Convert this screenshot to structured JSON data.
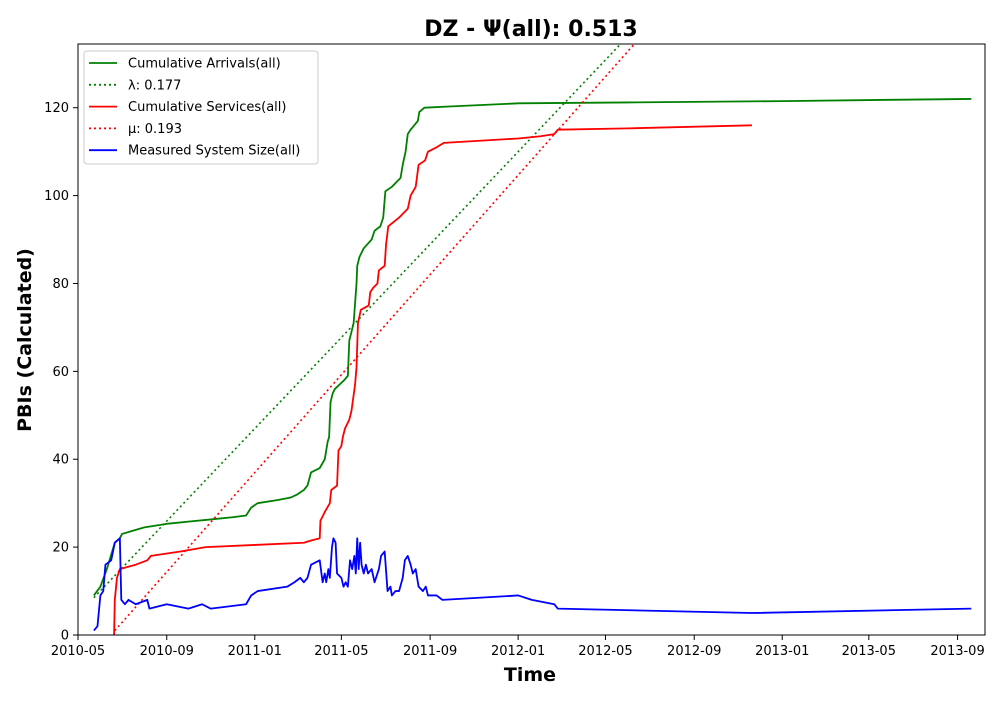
{
  "chart_data": {
    "type": "line",
    "title": "DZ -  Ψ(all): 0.513",
    "xlabel": "Time",
    "ylabel": "PBIs (Calculated)",
    "xlim": [
      "2010-05-01",
      "2013-10-09"
    ],
    "ylim": [
      0,
      134.5
    ],
    "x_ticks": [
      "2010-05",
      "2010-09",
      "2011-01",
      "2011-05",
      "2011-09",
      "2012-01",
      "2012-05",
      "2012-09",
      "2013-01",
      "2013-05",
      "2013-09"
    ],
    "y_ticks": [
      0,
      20,
      40,
      60,
      80,
      100,
      120
    ],
    "grid": false,
    "legend_position": "top-left",
    "series": [
      {
        "name": "Cumulative Arrivals(all)",
        "color": "#008000",
        "style": "solid",
        "points": [
          [
            "2010-05-23",
            9
          ],
          [
            "2010-06-01",
            11
          ],
          [
            "2010-06-10",
            15
          ],
          [
            "2010-06-21",
            21
          ],
          [
            "2010-06-28",
            22
          ],
          [
            "2010-07-01",
            23
          ],
          [
            "2010-08-01",
            24.5
          ],
          [
            "2010-09-01",
            25.3
          ],
          [
            "2010-10-01",
            25.8
          ],
          [
            "2010-11-01",
            26.3
          ],
          [
            "2010-12-01",
            26.8
          ],
          [
            "2010-12-20",
            27.2
          ],
          [
            "2010-12-27",
            29
          ],
          [
            "2011-01-05",
            30
          ],
          [
            "2011-02-01",
            30.7
          ],
          [
            "2011-02-20",
            31.3
          ],
          [
            "2011-03-01",
            32
          ],
          [
            "2011-03-10",
            33
          ],
          [
            "2011-03-15",
            34
          ],
          [
            "2011-03-20",
            37
          ],
          [
            "2011-04-01",
            38
          ],
          [
            "2011-04-08",
            40
          ],
          [
            "2011-04-12",
            44
          ],
          [
            "2011-04-14",
            45
          ],
          [
            "2011-04-16",
            53
          ],
          [
            "2011-04-19",
            55
          ],
          [
            "2011-04-22",
            56
          ],
          [
            "2011-05-05",
            58
          ],
          [
            "2011-05-10",
            59
          ],
          [
            "2011-05-12",
            67
          ],
          [
            "2011-05-15",
            69
          ],
          [
            "2011-05-18",
            71
          ],
          [
            "2011-05-22",
            80
          ],
          [
            "2011-05-23",
            84
          ],
          [
            "2011-05-26",
            86
          ],
          [
            "2011-06-01",
            88
          ],
          [
            "2011-06-12",
            90
          ],
          [
            "2011-06-16",
            92
          ],
          [
            "2011-06-24",
            93
          ],
          [
            "2011-06-28",
            95
          ],
          [
            "2011-07-01",
            101
          ],
          [
            "2011-07-10",
            102
          ],
          [
            "2011-07-22",
            104
          ],
          [
            "2011-07-25",
            107
          ],
          [
            "2011-07-29",
            110
          ],
          [
            "2011-08-01",
            114
          ],
          [
            "2011-08-05",
            115
          ],
          [
            "2011-08-10",
            116
          ],
          [
            "2011-08-15",
            117
          ],
          [
            "2011-08-17",
            119
          ],
          [
            "2011-08-24",
            120
          ],
          [
            "2011-10-01",
            120.3
          ],
          [
            "2012-01-01",
            121
          ],
          [
            "2012-06-01",
            121.2
          ],
          [
            "2013-01-01",
            121.5
          ],
          [
            "2013-06-01",
            121.8
          ],
          [
            "2013-09-20",
            122
          ]
        ]
      },
      {
        "name": "λ: 0.177",
        "color": "#008000",
        "style": "dotted",
        "points": [
          [
            "2010-05-23",
            8.5
          ],
          [
            "2012-05-22",
            134.5
          ]
        ]
      },
      {
        "name": "Cumulative Services(all)",
        "color": "#ff0000",
        "style": "solid",
        "points": [
          [
            "2010-06-20",
            0
          ],
          [
            "2010-06-21",
            8
          ],
          [
            "2010-06-24",
            13
          ],
          [
            "2010-06-28",
            15
          ],
          [
            "2010-07-20",
            16
          ],
          [
            "2010-08-05",
            17
          ],
          [
            "2010-08-10",
            18
          ],
          [
            "2010-09-20",
            19
          ],
          [
            "2010-10-25",
            20
          ],
          [
            "2011-01-01",
            20.5
          ],
          [
            "2011-03-10",
            21
          ],
          [
            "2011-03-20",
            21.5
          ],
          [
            "2011-04-01",
            22
          ],
          [
            "2011-04-02",
            26
          ],
          [
            "2011-04-08",
            28
          ],
          [
            "2011-04-15",
            30
          ],
          [
            "2011-04-17",
            33
          ],
          [
            "2011-04-25",
            34
          ],
          [
            "2011-04-27",
            42
          ],
          [
            "2011-05-01",
            43
          ],
          [
            "2011-05-03",
            45
          ],
          [
            "2011-05-06",
            47
          ],
          [
            "2011-05-12",
            49
          ],
          [
            "2011-05-15",
            51
          ],
          [
            "2011-05-20",
            57
          ],
          [
            "2011-05-22",
            61
          ],
          [
            "2011-05-24",
            71
          ],
          [
            "2011-05-28",
            74
          ],
          [
            "2011-06-08",
            75
          ],
          [
            "2011-06-10",
            78
          ],
          [
            "2011-06-14",
            79
          ],
          [
            "2011-06-20",
            80
          ],
          [
            "2011-06-22",
            83
          ],
          [
            "2011-06-30",
            84
          ],
          [
            "2011-07-02",
            89
          ],
          [
            "2011-07-05",
            93
          ],
          [
            "2011-07-20",
            95
          ],
          [
            "2011-08-01",
            97
          ],
          [
            "2011-08-05",
            100
          ],
          [
            "2011-08-12",
            102
          ],
          [
            "2011-08-16",
            107
          ],
          [
            "2011-08-25",
            108
          ],
          [
            "2011-08-29",
            110
          ],
          [
            "2011-09-10",
            111
          ],
          [
            "2011-09-20",
            112
          ],
          [
            "2012-01-01",
            113
          ],
          [
            "2012-02-01",
            113.5
          ],
          [
            "2012-02-20",
            114
          ],
          [
            "2012-02-25",
            115
          ],
          [
            "2012-06-01",
            115.3
          ],
          [
            "2012-11-20",
            116
          ]
        ]
      },
      {
        "name": "μ: 0.193",
        "color": "#ff0000",
        "style": "dotted",
        "points": [
          [
            "2010-06-21",
            1
          ],
          [
            "2012-06-10",
            134.5
          ]
        ]
      },
      {
        "name": "Measured System Size(all)",
        "color": "#0000ff",
        "style": "solid",
        "points": [
          [
            "2010-05-23",
            1
          ],
          [
            "2010-05-28",
            2
          ],
          [
            "2010-06-01",
            9
          ],
          [
            "2010-06-05",
            10
          ],
          [
            "2010-06-08",
            16
          ],
          [
            "2010-06-16",
            17
          ],
          [
            "2010-06-21",
            21
          ],
          [
            "2010-06-28",
            22
          ],
          [
            "2010-06-30",
            8
          ],
          [
            "2010-07-05",
            7
          ],
          [
            "2010-07-10",
            8
          ],
          [
            "2010-07-20",
            7
          ],
          [
            "2010-08-05",
            8
          ],
          [
            "2010-08-08",
            6
          ],
          [
            "2010-09-01",
            7
          ],
          [
            "2010-10-01",
            6
          ],
          [
            "2010-10-20",
            7
          ],
          [
            "2010-11-01",
            6
          ],
          [
            "2010-12-20",
            7
          ],
          [
            "2010-12-27",
            9
          ],
          [
            "2011-01-05",
            10
          ],
          [
            "2011-02-15",
            11
          ],
          [
            "2011-02-25",
            12
          ],
          [
            "2011-03-05",
            13
          ],
          [
            "2011-03-10",
            12
          ],
          [
            "2011-03-15",
            13
          ],
          [
            "2011-03-20",
            16
          ],
          [
            "2011-04-01",
            17
          ],
          [
            "2011-04-05",
            12
          ],
          [
            "2011-04-08",
            14
          ],
          [
            "2011-04-10",
            12
          ],
          [
            "2011-04-13",
            15
          ],
          [
            "2011-04-15",
            13
          ],
          [
            "2011-04-18",
            20
          ],
          [
            "2011-04-20",
            22
          ],
          [
            "2011-04-23",
            21
          ],
          [
            "2011-04-25",
            14
          ],
          [
            "2011-05-01",
            13
          ],
          [
            "2011-05-04",
            11
          ],
          [
            "2011-05-07",
            12
          ],
          [
            "2011-05-10",
            11
          ],
          [
            "2011-05-13",
            17
          ],
          [
            "2011-05-16",
            15
          ],
          [
            "2011-05-19",
            18
          ],
          [
            "2011-05-21",
            14
          ],
          [
            "2011-05-23",
            22
          ],
          [
            "2011-05-25",
            15
          ],
          [
            "2011-05-27",
            21
          ],
          [
            "2011-05-29",
            16
          ],
          [
            "2011-06-01",
            14
          ],
          [
            "2011-06-04",
            16
          ],
          [
            "2011-06-07",
            14
          ],
          [
            "2011-06-12",
            15
          ],
          [
            "2011-06-16",
            12
          ],
          [
            "2011-06-22",
            15
          ],
          [
            "2011-06-25",
            18
          ],
          [
            "2011-06-30",
            19
          ],
          [
            "2011-07-04",
            10
          ],
          [
            "2011-07-08",
            11
          ],
          [
            "2011-07-10",
            9
          ],
          [
            "2011-07-15",
            10
          ],
          [
            "2011-07-20",
            10
          ],
          [
            "2011-07-25",
            13
          ],
          [
            "2011-07-28",
            17
          ],
          [
            "2011-08-01",
            18
          ],
          [
            "2011-08-05",
            16
          ],
          [
            "2011-08-08",
            14
          ],
          [
            "2011-08-12",
            15
          ],
          [
            "2011-08-16",
            11
          ],
          [
            "2011-08-22",
            10
          ],
          [
            "2011-08-26",
            11
          ],
          [
            "2011-08-29",
            9
          ],
          [
            "2011-09-10",
            9
          ],
          [
            "2011-09-18",
            8
          ],
          [
            "2012-01-01",
            9
          ],
          [
            "2012-01-20",
            8
          ],
          [
            "2012-02-20",
            7
          ],
          [
            "2012-02-25",
            6
          ],
          [
            "2012-11-20",
            5
          ],
          [
            "2013-09-20",
            6
          ]
        ]
      }
    ]
  }
}
